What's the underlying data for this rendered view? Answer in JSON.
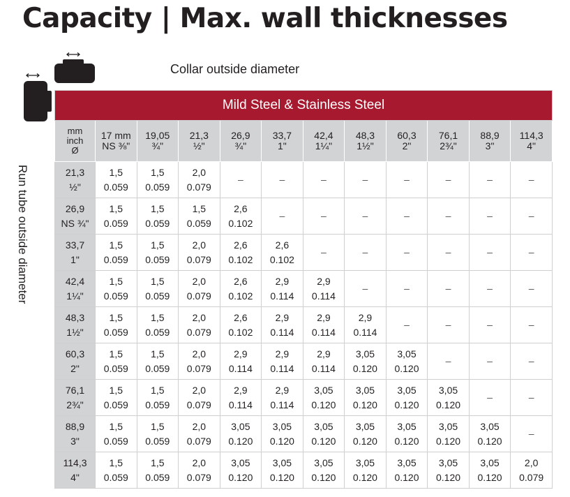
{
  "title": "Capacity | Max. wall thicknesses",
  "collar_label": "Collar outside diameter",
  "run_label": "Run tube outside diameter",
  "material": "Mild Steel & Stainless Steel",
  "corner": [
    "mm",
    "inch",
    "Ø"
  ],
  "columns": [
    {
      "mm": "17 mm",
      "inch": "NS ⅜\""
    },
    {
      "mm": "19,05",
      "inch": "¾\""
    },
    {
      "mm": "21,3",
      "inch": "½\""
    },
    {
      "mm": "26,9",
      "inch": "¾\""
    },
    {
      "mm": "33,7",
      "inch": "1\""
    },
    {
      "mm": "42,4",
      "inch": "1¼\""
    },
    {
      "mm": "48,3",
      "inch": "1½\""
    },
    {
      "mm": "60,3",
      "inch": "2\""
    },
    {
      "mm": "76,1",
      "inch": "2¾\""
    },
    {
      "mm": "88,9",
      "inch": "3\""
    },
    {
      "mm": "114,3",
      "inch": "4\""
    }
  ],
  "rows": [
    {
      "mm": "21,3",
      "inch": "½\"",
      "cells": [
        [
          "1,5",
          "0.059"
        ],
        [
          "1,5",
          "0.059"
        ],
        [
          "2,0",
          "0.079"
        ],
        "–",
        "–",
        "–",
        "–",
        "–",
        "–",
        "–",
        "–"
      ]
    },
    {
      "mm": "26,9",
      "inch": "NS ¾\"",
      "cells": [
        [
          "1,5",
          "0.059"
        ],
        [
          "1,5",
          "0.059"
        ],
        [
          "1,5",
          "0.059"
        ],
        [
          "2,6",
          "0.102"
        ],
        "–",
        "–",
        "–",
        "–",
        "–",
        "–",
        "–"
      ]
    },
    {
      "mm": "33,7",
      "inch": "1\"",
      "cells": [
        [
          "1,5",
          "0.059"
        ],
        [
          "1,5",
          "0.059"
        ],
        [
          "2,0",
          "0.079"
        ],
        [
          "2,6",
          "0.102"
        ],
        [
          "2,6",
          "0.102"
        ],
        "–",
        "–",
        "–",
        "–",
        "–",
        "–"
      ]
    },
    {
      "mm": "42,4",
      "inch": "1¼\"",
      "cells": [
        [
          "1,5",
          "0.059"
        ],
        [
          "1,5",
          "0.059"
        ],
        [
          "2,0",
          "0.079"
        ],
        [
          "2,6",
          "0.102"
        ],
        [
          "2,9",
          "0.114"
        ],
        [
          "2,9",
          "0.114"
        ],
        "–",
        "–",
        "–",
        "–",
        "–"
      ]
    },
    {
      "mm": "48,3",
      "inch": "1½\"",
      "cells": [
        [
          "1,5",
          "0.059"
        ],
        [
          "1,5",
          "0.059"
        ],
        [
          "2,0",
          "0.079"
        ],
        [
          "2,6",
          "0.102"
        ],
        [
          "2,9",
          "0.114"
        ],
        [
          "2,9",
          "0.114"
        ],
        [
          "2,9",
          "0.114"
        ],
        "–",
        "–",
        "–",
        "–"
      ]
    },
    {
      "mm": "60,3",
      "inch": "2\"",
      "cells": [
        [
          "1,5",
          "0.059"
        ],
        [
          "1,5",
          "0.059"
        ],
        [
          "2,0",
          "0.079"
        ],
        [
          "2,9",
          "0.114"
        ],
        [
          "2,9",
          "0.114"
        ],
        [
          "2,9",
          "0.114"
        ],
        [
          "3,05",
          "0.120"
        ],
        [
          "3,05",
          "0.120"
        ],
        "–",
        "–",
        "–"
      ]
    },
    {
      "mm": "76,1",
      "inch": "2¾\"",
      "cells": [
        [
          "1,5",
          "0.059"
        ],
        [
          "1,5",
          "0.059"
        ],
        [
          "2,0",
          "0.079"
        ],
        [
          "2,9",
          "0.114"
        ],
        [
          "2,9",
          "0.114"
        ],
        [
          "3,05",
          "0.120"
        ],
        [
          "3,05",
          "0.120"
        ],
        [
          "3,05",
          "0.120"
        ],
        [
          "3,05",
          "0.120"
        ],
        "–",
        "–"
      ]
    },
    {
      "mm": "88,9",
      "inch": "3\"",
      "cells": [
        [
          "1,5",
          "0.059"
        ],
        [
          "1,5",
          "0.059"
        ],
        [
          "2,0",
          "0.079"
        ],
        [
          "3,05",
          "0.120"
        ],
        [
          "3,05",
          "0.120"
        ],
        [
          "3,05",
          "0.120"
        ],
        [
          "3,05",
          "0.120"
        ],
        [
          "3,05",
          "0.120"
        ],
        [
          "3,05",
          "0.120"
        ],
        [
          "3,05",
          "0.120"
        ],
        "–"
      ]
    },
    {
      "mm": "114,3",
      "inch": "4\"",
      "cells": [
        [
          "1,5",
          "0.059"
        ],
        [
          "1,5",
          "0.059"
        ],
        [
          "2,0",
          "0.079"
        ],
        [
          "3,05",
          "0.120"
        ],
        [
          "3,05",
          "0.120"
        ],
        [
          "3,05",
          "0.120"
        ],
        [
          "3,05",
          "0.120"
        ],
        [
          "3,05",
          "0.120"
        ],
        [
          "3,05",
          "0.120"
        ],
        [
          "3,05",
          "0.120"
        ],
        [
          "2,0",
          "0.079"
        ]
      ]
    }
  ]
}
